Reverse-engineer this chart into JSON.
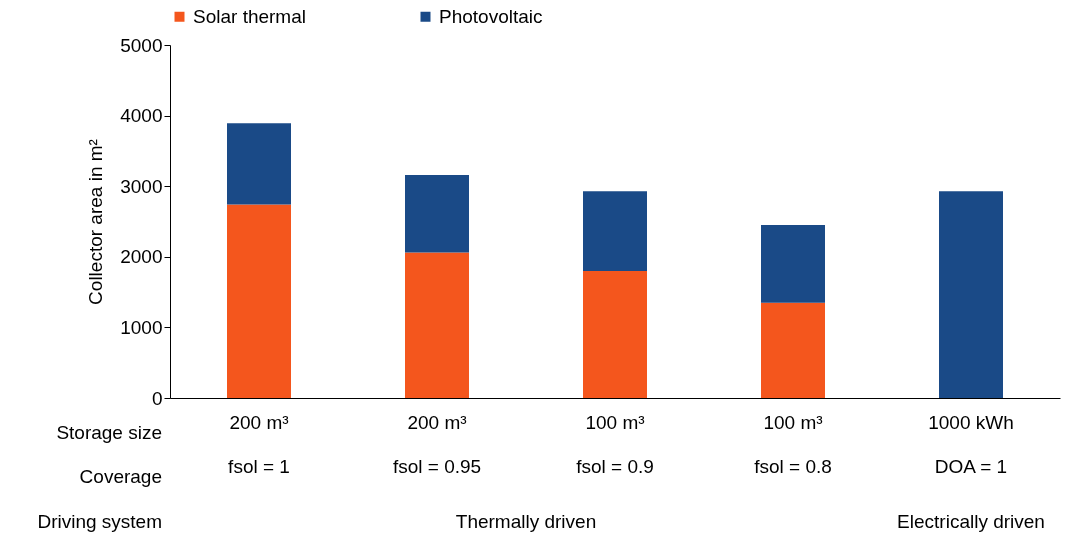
{
  "chart_data": {
    "type": "bar",
    "stacked": true,
    "ylabel": "Collector area in m²",
    "categories": [
      "200 m³\nfsol = 1",
      "200 m³\nfsol = 0.95",
      "100 m³\nfsol = 0.9",
      "100 m³\nfsol = 0.8",
      "1000 kWh\nDOA = 1"
    ],
    "series": [
      {
        "name": "Solar thermal",
        "color": "#f4561d",
        "values": [
          2740,
          2060,
          1800,
          1350,
          0
        ]
      },
      {
        "name": "Photovoltaic",
        "color": "#1a4a87",
        "values": [
          1150,
          1100,
          1130,
          1100,
          2930
        ]
      }
    ],
    "ylim": [
      0,
      5000
    ],
    "yticks": [
      0,
      1000,
      2000,
      3000,
      4000,
      5000
    ],
    "grid": false,
    "legend": "top",
    "annotations": [
      "Storage size",
      "Coverage",
      "Driving system",
      "Thermally driven",
      "Electrically driven"
    ]
  }
}
